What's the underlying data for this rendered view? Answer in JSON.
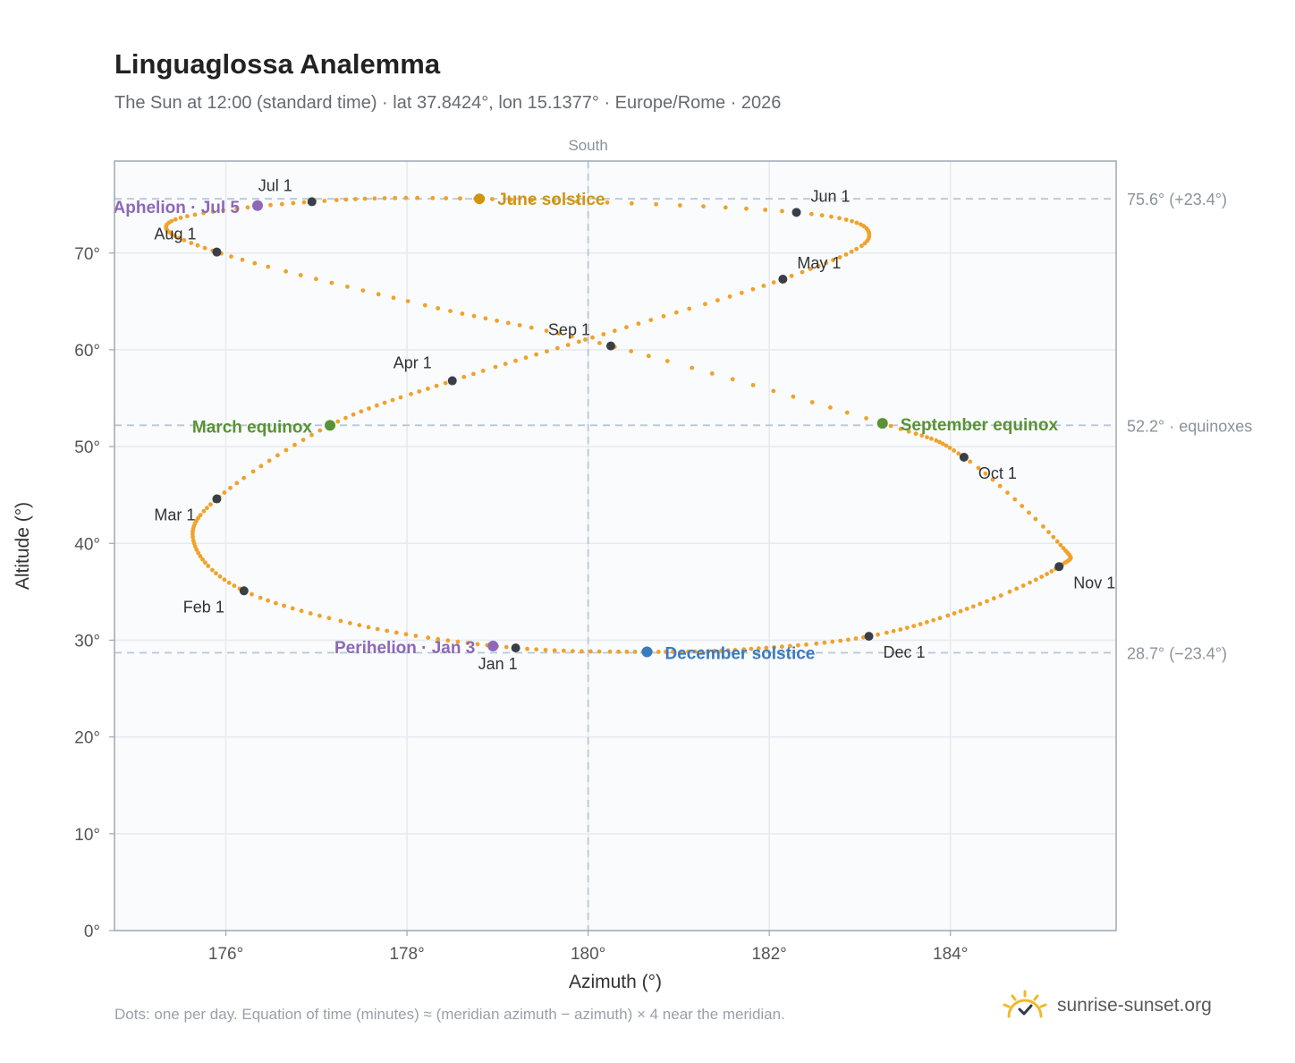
{
  "header": {
    "title": "Linguaglossa Analemma",
    "subtitle": "The Sun at 12:00 (standard time) · lat 37.8424°, lon 15.1377° · Europe/Rome · 2026"
  },
  "footer": {
    "note": "Dots: one per day. Equation of time (minutes) ≈ (meridian azimuth − azimuth) × 4 near the meridian.",
    "brand": "sunrise-sunset.org"
  },
  "colors": {
    "curve": "#f0a22a",
    "month_marker": "#3a3f47",
    "solstice_june": "#d19410",
    "solstice_december": "#3a7ac0",
    "equinox": "#5a9234",
    "apsis": "#8d68b8",
    "reference_line": "#b8c8d8",
    "plot_bg": "#f9fbfd",
    "grid": "#e6eaee"
  },
  "chart_data": {
    "type": "scatter",
    "xlabel": "Azimuth (°)",
    "ylabel": "Altitude (°)",
    "xlim": [
      174.77,
      185.83
    ],
    "ylim": [
      0,
      79.5
    ],
    "xticks": [
      176,
      178,
      180,
      182,
      184
    ],
    "xtick_labels": [
      "176°",
      "178°",
      "180°",
      "182°",
      "184°"
    ],
    "yticks": [
      0,
      10,
      20,
      30,
      40,
      50,
      60,
      70
    ],
    "ytick_labels": [
      "0°",
      "10°",
      "20°",
      "30°",
      "40°",
      "50°",
      "60°",
      "70°"
    ],
    "grid": true,
    "meridian": {
      "azimuth": 180,
      "label": "South"
    },
    "reference_lines": [
      {
        "altitude": 75.6,
        "label": "75.6° (+23.4°)"
      },
      {
        "altitude": 52.2,
        "label": "52.2° · equinoxes"
      },
      {
        "altitude": 28.7,
        "label": "28.7° (−23.4°)"
      }
    ],
    "daily_points_note": "one dot per day",
    "month_markers": [
      {
        "label": "Jan 1",
        "azimuth": 179.2,
        "altitude": 29.2
      },
      {
        "label": "Feb 1",
        "azimuth": 176.2,
        "altitude": 35.1
      },
      {
        "label": "Mar 1",
        "azimuth": 175.9,
        "altitude": 44.6
      },
      {
        "label": "Apr 1",
        "azimuth": 178.5,
        "altitude": 56.8
      },
      {
        "label": "May 1",
        "azimuth": 182.15,
        "altitude": 67.3
      },
      {
        "label": "Jun 1",
        "azimuth": 182.3,
        "altitude": 74.2
      },
      {
        "label": "Jul 1",
        "azimuth": 176.95,
        "altitude": 75.3
      },
      {
        "label": "Aug 1",
        "azimuth": 175.9,
        "altitude": 70.1
      },
      {
        "label": "Sep 1",
        "azimuth": 180.25,
        "altitude": 60.4
      },
      {
        "label": "Oct 1",
        "azimuth": 184.15,
        "altitude": 48.9
      },
      {
        "label": "Nov 1",
        "azimuth": 185.2,
        "altitude": 37.6
      },
      {
        "label": "Dec 1",
        "azimuth": 183.1,
        "altitude": 30.4
      }
    ],
    "special_events": [
      {
        "label": "June solstice",
        "azimuth": 178.8,
        "altitude": 75.6,
        "kind": "solstice_june"
      },
      {
        "label": "December solstice",
        "azimuth": 180.65,
        "altitude": 28.8,
        "kind": "solstice_december"
      },
      {
        "label": "March equinox",
        "azimuth": 177.15,
        "altitude": 52.2,
        "kind": "equinox"
      },
      {
        "label": "September equinox",
        "azimuth": 183.25,
        "altitude": 52.4,
        "kind": "equinox"
      },
      {
        "label": "Aphelion · Jul 5",
        "azimuth": 176.35,
        "altitude": 74.9,
        "kind": "apsis"
      },
      {
        "label": "Perihelion · Jan 3",
        "azimuth": 178.95,
        "altitude": 29.4,
        "kind": "apsis"
      }
    ],
    "curve_knots": [
      [
        179.2,
        29.2
      ],
      [
        177.6,
        31.3
      ],
      [
        176.2,
        35.1
      ],
      [
        175.65,
        40.0
      ],
      [
        175.9,
        44.6
      ],
      [
        177.15,
        52.2
      ],
      [
        178.5,
        56.8
      ],
      [
        180.2,
        61.7
      ],
      [
        182.15,
        67.3
      ],
      [
        183.1,
        71.6
      ],
      [
        182.3,
        74.2
      ],
      [
        178.8,
        75.6
      ],
      [
        176.95,
        75.3
      ],
      [
        175.4,
        73.3
      ],
      [
        175.9,
        70.1
      ],
      [
        178.2,
        64.6
      ],
      [
        180.25,
        60.4
      ],
      [
        183.25,
        52.4
      ],
      [
        184.15,
        48.9
      ],
      [
        185.2,
        40.0
      ],
      [
        185.2,
        37.6
      ],
      [
        184.2,
        33.3
      ],
      [
        183.1,
        30.4
      ],
      [
        181.8,
        29.1
      ],
      [
        180.65,
        28.8
      ],
      [
        179.2,
        29.2
      ]
    ]
  }
}
